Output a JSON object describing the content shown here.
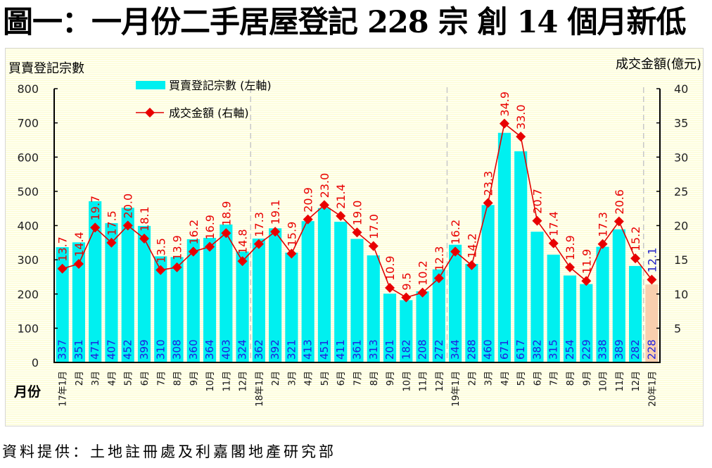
{
  "title": "圖一：一月份二手居屋登記 228 宗  創 14 個月新低",
  "source": "資料提供：土地註冊處及利嘉閣地產研究部",
  "colors": {
    "bar": "#00f0f0",
    "bar_highlight": "#f9cfae",
    "line": "#e00000",
    "bar_label": "#2424e6",
    "line_label": "#e80000",
    "line_label_highlight": "#1f1fc8"
  },
  "chart_data": {
    "type": "bar+line",
    "title": "圖一：一月份二手居屋登記 228 宗  創 14 個月新低",
    "xlabel": "月份",
    "ylabel_left": "買賣登記宗數",
    "ylabel_right": "成交金額(億元)",
    "ylim_left": [
      0,
      800
    ],
    "ylim_right": [
      0,
      40
    ],
    "yticks_left": [
      "0",
      "100",
      "200",
      "300",
      "400",
      "500",
      "600",
      "700",
      "800"
    ],
    "yticks_right": [
      "5",
      "10",
      "15",
      "20",
      "25",
      "30",
      "35",
      "40"
    ],
    "legend": {
      "placement": "top-left",
      "entries": [
        "買賣登記宗數 (左軸)",
        "成交金額 (右軸)"
      ]
    },
    "categories": [
      "17年1月",
      "2月",
      "3月",
      "4月",
      "5月",
      "6月",
      "7月",
      "8月",
      "9月",
      "10月",
      "11月",
      "12月",
      "18年1月",
      "2月",
      "3月",
      "4月",
      "5月",
      "6月",
      "7月",
      "8月",
      "9月",
      "10月",
      "11月",
      "12月",
      "19年1月",
      "2月",
      "3月",
      "4月",
      "5月",
      "6月",
      "7月",
      "8月",
      "9月",
      "10月",
      "11月",
      "12月",
      "20年1月"
    ],
    "series": [
      {
        "name": "買賣登記宗數 (左軸)",
        "type": "bar",
        "axis": "left",
        "values": [
          337,
          351,
          471,
          407,
          452,
          399,
          310,
          308,
          360,
          364,
          403,
          324,
          362,
          392,
          321,
          413,
          451,
          411,
          361,
          313,
          201,
          182,
          208,
          272,
          344,
          288,
          460,
          671,
          617,
          382,
          315,
          254,
          229,
          338,
          389,
          282,
          228
        ],
        "labels": [
          "337",
          "351",
          "471",
          "407",
          "452",
          "399",
          "310",
          "308",
          "360",
          "364",
          "403",
          "324",
          "362",
          "392",
          "321",
          "413",
          "451",
          "411",
          "361",
          "313",
          "201",
          "182",
          "208",
          "272",
          "344",
          "288",
          "460",
          "671",
          "617",
          "382",
          "315",
          "254",
          "229",
          "338",
          "389",
          "282",
          "228"
        ]
      },
      {
        "name": "成交金額 (右軸)",
        "type": "line",
        "axis": "right",
        "values": [
          13.7,
          14.4,
          19.7,
          17.5,
          20.0,
          18.1,
          13.5,
          13.9,
          16.2,
          16.9,
          18.9,
          14.8,
          17.3,
          19.1,
          15.9,
          20.9,
          23.0,
          21.4,
          19.0,
          17.0,
          10.9,
          9.5,
          10.2,
          12.3,
          16.2,
          14.2,
          23.3,
          34.9,
          33.0,
          20.7,
          17.4,
          13.9,
          11.9,
          17.3,
          20.6,
          15.2,
          12.1
        ],
        "labels": [
          "13.7",
          "14.4",
          "19.7",
          "17.5",
          "20.0",
          "18.1",
          "13.5",
          "13.9",
          "16.2",
          "16.9",
          "18.9",
          "14.8",
          "17.3",
          "19.1",
          "15.9",
          "20.9",
          "23.0",
          "21.4",
          "19.0",
          "17.0",
          "10.9",
          "9.5",
          "10.2",
          "12.3",
          "16.2",
          "14.2",
          "23.3",
          "34.9",
          "33.0",
          "20.7",
          "17.4",
          "13.9",
          "11.9",
          "17.3",
          "20.6",
          "15.2",
          "12.1"
        ]
      }
    ],
    "highlight_index": 36,
    "year_dividers_after": [
      "12月",
      "12月",
      "12月"
    ],
    "grid": false
  }
}
